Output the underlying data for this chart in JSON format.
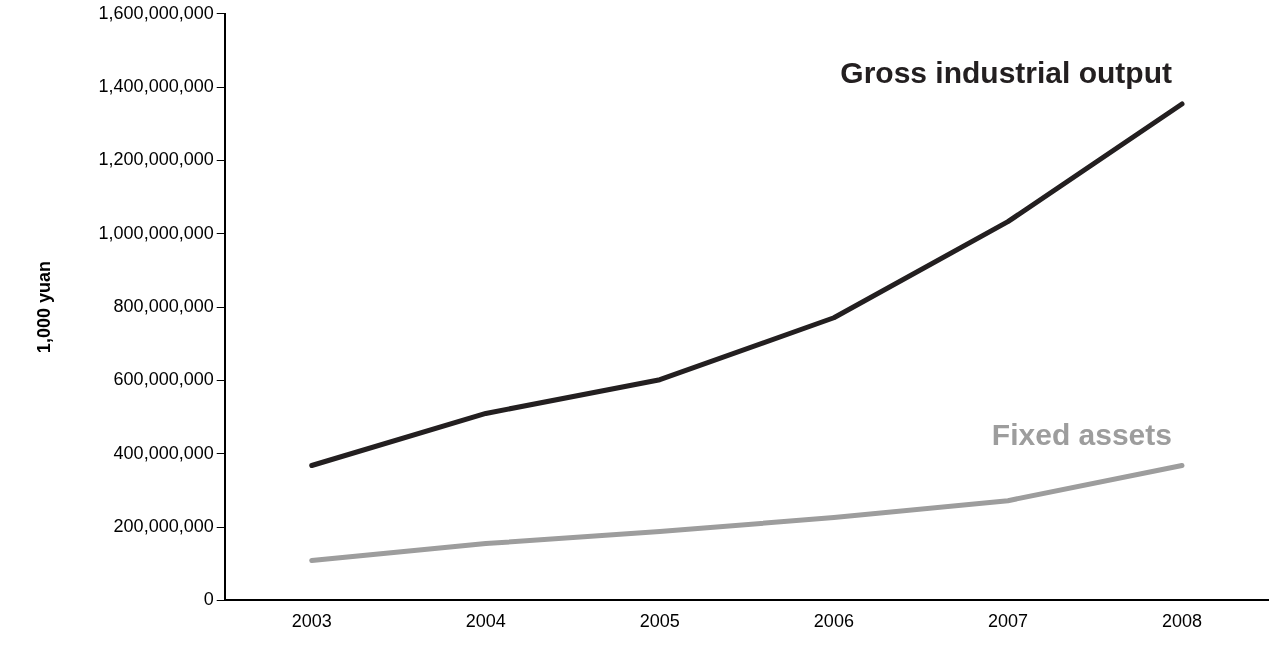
{
  "chart_data": {
    "type": "line",
    "ylabel": "1,000 yuan",
    "categories": [
      "2003",
      "2004",
      "2005",
      "2006",
      "2007",
      "2008"
    ],
    "series": [
      {
        "name": "Gross industrial output",
        "color": "#231f20",
        "values": [
          368000000,
          510000000,
          602000000,
          771000000,
          1033000000,
          1354000000
        ]
      },
      {
        "name": "Fixed assets",
        "color": "#9d9d9d",
        "values": [
          109000000,
          155000000,
          188000000,
          226000000,
          272000000,
          368000000
        ]
      }
    ],
    "ylim": [
      0,
      1600000000
    ],
    "yticks": [
      0,
      {
        "value": 200000000,
        "label": "200,000,000"
      },
      {
        "value": 400000000,
        "label": "400,000,000"
      },
      {
        "value": 600000000,
        "label": "600,000,000"
      },
      {
        "value": 800000000,
        "label": "800,000,000"
      },
      {
        "value": 1000000000,
        "label": "1,000,000,000"
      },
      {
        "value": 1200000000,
        "label": "1,200,000,000"
      },
      {
        "value": 1400000000,
        "label": "1,400,000,000"
      },
      {
        "value": 1600000000,
        "label": "1,600,000,000"
      }
    ],
    "grid": false,
    "legend": false,
    "marker": "none",
    "line_style": "solid"
  }
}
